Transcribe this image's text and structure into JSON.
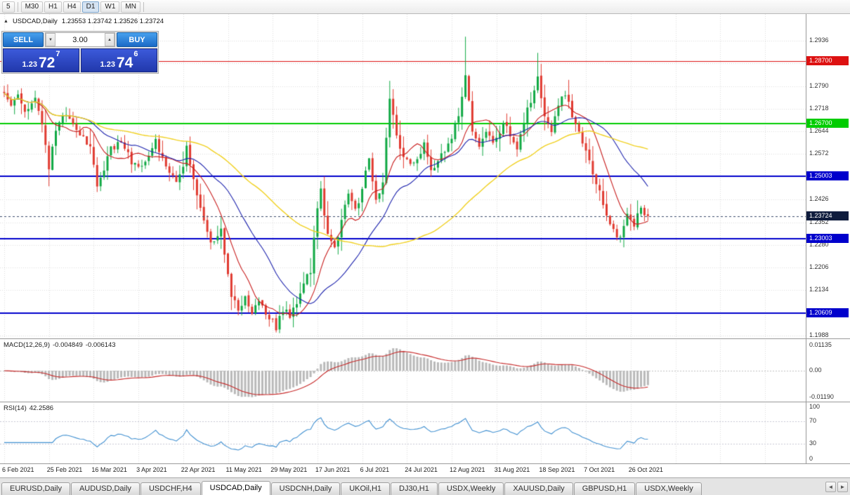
{
  "toolbar": {
    "timeframes": [
      {
        "label": "5",
        "active": false
      },
      {
        "label": "M30",
        "active": false
      },
      {
        "label": "H1",
        "active": false
      },
      {
        "label": "H4",
        "active": false
      },
      {
        "label": "D1",
        "active": true
      },
      {
        "label": "W1",
        "active": false
      },
      {
        "label": "MN",
        "active": false
      }
    ]
  },
  "header": {
    "collapse_icon": "▲",
    "title": "USDCAD,Daily",
    "ohlc": "1.23553 1.23742 1.23526 1.23724"
  },
  "trade_panel": {
    "sell_label": "SELL",
    "buy_label": "BUY",
    "volume": "3.00",
    "spinner_down": "▼",
    "spinner_up": "▲",
    "sell_price": {
      "prefix": "1.23",
      "big": "72",
      "sup": "7"
    },
    "buy_price": {
      "prefix": "1.23",
      "big": "74",
      "sup": "6"
    }
  },
  "price_axis": {
    "labels": [
      "1.2936",
      "1.2864",
      "1.2790",
      "1.2718",
      "1.2644",
      "1.2572",
      "1.2500",
      "1.2426",
      "1.2352",
      "1.2280",
      "1.2206",
      "1.2134",
      "1.2060",
      "1.1988"
    ]
  },
  "levels": [
    {
      "label": "1.28700",
      "price": 1.287,
      "color": "#dd1111",
      "width": 1
    },
    {
      "label": "1.26700",
      "price": 1.267,
      "color": "#00cc00",
      "width": 2
    },
    {
      "label": "1.25003",
      "price": 1.25003,
      "color": "#0000cc",
      "width": 2
    },
    {
      "label": "1.23003",
      "price": 1.23003,
      "color": "#0000cc",
      "width": 2
    },
    {
      "label": "1.20609",
      "price": 1.20609,
      "color": "#0000cc",
      "width": 2
    }
  ],
  "current_price": {
    "label": "1.23724",
    "price": 1.23724,
    "badge_color": "#0f1c3d"
  },
  "macd_panel": {
    "label": "MACD(12,26,9)",
    "value1": "-0.004849",
    "value2": "-0.006143",
    "axis": [
      "0.01135",
      "0.00",
      "-0.01190"
    ]
  },
  "rsi_panel": {
    "label": "RSI(14)",
    "value": "42.2586",
    "axis": [
      "100",
      "70",
      "30",
      "0"
    ],
    "levels": [
      70,
      30
    ]
  },
  "date_axis": {
    "labels": [
      "6 Feb 2021",
      "25 Feb 2021",
      "16 Mar 2021",
      "3 Apr 2021",
      "22 Apr 2021",
      "11 May 2021",
      "29 May 2021",
      "17 Jun 2021",
      "6 Jul 2021",
      "24 Jul 2021",
      "12 Aug 2021",
      "31 Aug 2021",
      "18 Sep 2021",
      "7 Oct 2021",
      "26 Oct 2021"
    ]
  },
  "tabs": {
    "items": [
      {
        "label": "EURUSD,Daily",
        "active": false
      },
      {
        "label": "AUDUSD,Daily",
        "active": false
      },
      {
        "label": "USDCHF,H4",
        "active": false
      },
      {
        "label": "USDCAD,Daily",
        "active": true
      },
      {
        "label": "USDCNH,Daily",
        "active": false
      },
      {
        "label": "UKOil,H1",
        "active": false
      },
      {
        "label": "DJ30,H1",
        "active": false
      },
      {
        "label": "USDX,Weekly",
        "active": false
      },
      {
        "label": "XAUUSD,Daily",
        "active": false
      },
      {
        "label": "GBPUSD,H1",
        "active": false
      },
      {
        "label": "USDX,Weekly",
        "active": false
      }
    ],
    "scroll_left": "◄",
    "scroll_right": "►"
  },
  "chart_data": {
    "type": "candlestick",
    "symbol": "USDCAD",
    "timeframe": "Daily",
    "ylim": [
      1.1983,
      1.3008
    ],
    "candle_count": 188,
    "tick_every": 13,
    "up_color": "#0fa843",
    "down_color": "#e03a30",
    "moving_averages": [
      {
        "period": 10,
        "color": "#c81e1e"
      },
      {
        "period": 25,
        "color": "#1d23ad"
      },
      {
        "period": 60,
        "color": "#f0d020"
      }
    ],
    "macd": {
      "fast": 12,
      "slow": 26,
      "signal": 9,
      "current": -0.004849,
      "current_signal": -0.006143
    },
    "rsi": {
      "period": 14,
      "current": 42.2586
    },
    "waypoints": [
      [
        0,
        1.2775
      ],
      [
        2,
        1.2735
      ],
      [
        4,
        1.2768
      ],
      [
        6,
        1.2705
      ],
      [
        9,
        1.2745
      ],
      [
        11,
        1.2665
      ],
      [
        13,
        1.253
      ],
      [
        15,
        1.265
      ],
      [
        17,
        1.2705
      ],
      [
        19,
        1.268
      ],
      [
        22,
        1.264
      ],
      [
        25,
        1.26
      ],
      [
        27,
        1.247
      ],
      [
        29,
        1.252
      ],
      [
        31,
        1.259
      ],
      [
        34,
        1.2615
      ],
      [
        37,
        1.255
      ],
      [
        39,
        1.2525
      ],
      [
        42,
        1.2565
      ],
      [
        44,
        1.261
      ],
      [
        46,
        1.256
      ],
      [
        48,
        1.2505
      ],
      [
        50,
        1.248
      ],
      [
        52,
        1.253
      ],
      [
        53,
        1.261
      ],
      [
        55,
        1.248
      ],
      [
        57,
        1.239
      ],
      [
        59,
        1.231
      ],
      [
        61,
        1.2285
      ],
      [
        63,
        1.233
      ],
      [
        64,
        1.2255
      ],
      [
        66,
        1.212
      ],
      [
        68,
        1.2065
      ],
      [
        70,
        1.211
      ],
      [
        72,
        1.2055
      ],
      [
        74,
        1.2105
      ],
      [
        76,
        1.206
      ],
      [
        78,
        1.203
      ],
      [
        79,
        1.201
      ],
      [
        81,
        1.2075
      ],
      [
        83,
        1.2045
      ],
      [
        85,
        1.2095
      ],
      [
        87,
        1.2155
      ],
      [
        89,
        1.22
      ],
      [
        91,
        1.2395
      ],
      [
        92,
        1.246
      ],
      [
        94,
        1.231
      ],
      [
        96,
        1.227
      ],
      [
        98,
        1.236
      ],
      [
        100,
        1.244
      ],
      [
        102,
        1.239
      ],
      [
        104,
        1.246
      ],
      [
        106,
        1.256
      ],
      [
        108,
        1.243
      ],
      [
        110,
        1.248
      ],
      [
        112,
        1.275
      ],
      [
        114,
        1.264
      ],
      [
        116,
        1.256
      ],
      [
        118,
        1.253
      ],
      [
        120,
        1.256
      ],
      [
        122,
        1.26
      ],
      [
        124,
        1.252
      ],
      [
        126,
        1.2555
      ],
      [
        128,
        1.259
      ],
      [
        130,
        1.263
      ],
      [
        132,
        1.269
      ],
      [
        134,
        1.282
      ],
      [
        136,
        1.265
      ],
      [
        138,
        1.26
      ],
      [
        140,
        1.265
      ],
      [
        142,
        1.26
      ],
      [
        143,
        1.262
      ],
      [
        145,
        1.268
      ],
      [
        147,
        1.263
      ],
      [
        149,
        1.258
      ],
      [
        151,
        1.268
      ],
      [
        153,
        1.274
      ],
      [
        155,
        1.281
      ],
      [
        157,
        1.27
      ],
      [
        159,
        1.265
      ],
      [
        161,
        1.272
      ],
      [
        163,
        1.277
      ],
      [
        165,
        1.27
      ],
      [
        167,
        1.264
      ],
      [
        169,
        1.259
      ],
      [
        171,
        1.25
      ],
      [
        173,
        1.245
      ],
      [
        175,
        1.237
      ],
      [
        177,
        1.233
      ],
      [
        179,
        1.2295
      ],
      [
        181,
        1.239
      ],
      [
        183,
        1.234
      ],
      [
        185,
        1.24
      ],
      [
        187,
        1.2372
      ]
    ],
    "overrides": [
      {
        "i": 13,
        "low": 1.2468
      },
      {
        "i": 60,
        "low": 1.2265
      },
      {
        "i": 79,
        "low": 1.1998
      },
      {
        "i": 92,
        "high": 1.2485
      },
      {
        "i": 112,
        "high": 1.2807
      },
      {
        "i": 134,
        "high": 1.2949
      },
      {
        "i": 155,
        "high": 1.2897
      },
      {
        "i": 163,
        "high": 1.2775
      },
      {
        "i": 179,
        "low": 1.2288
      }
    ]
  }
}
